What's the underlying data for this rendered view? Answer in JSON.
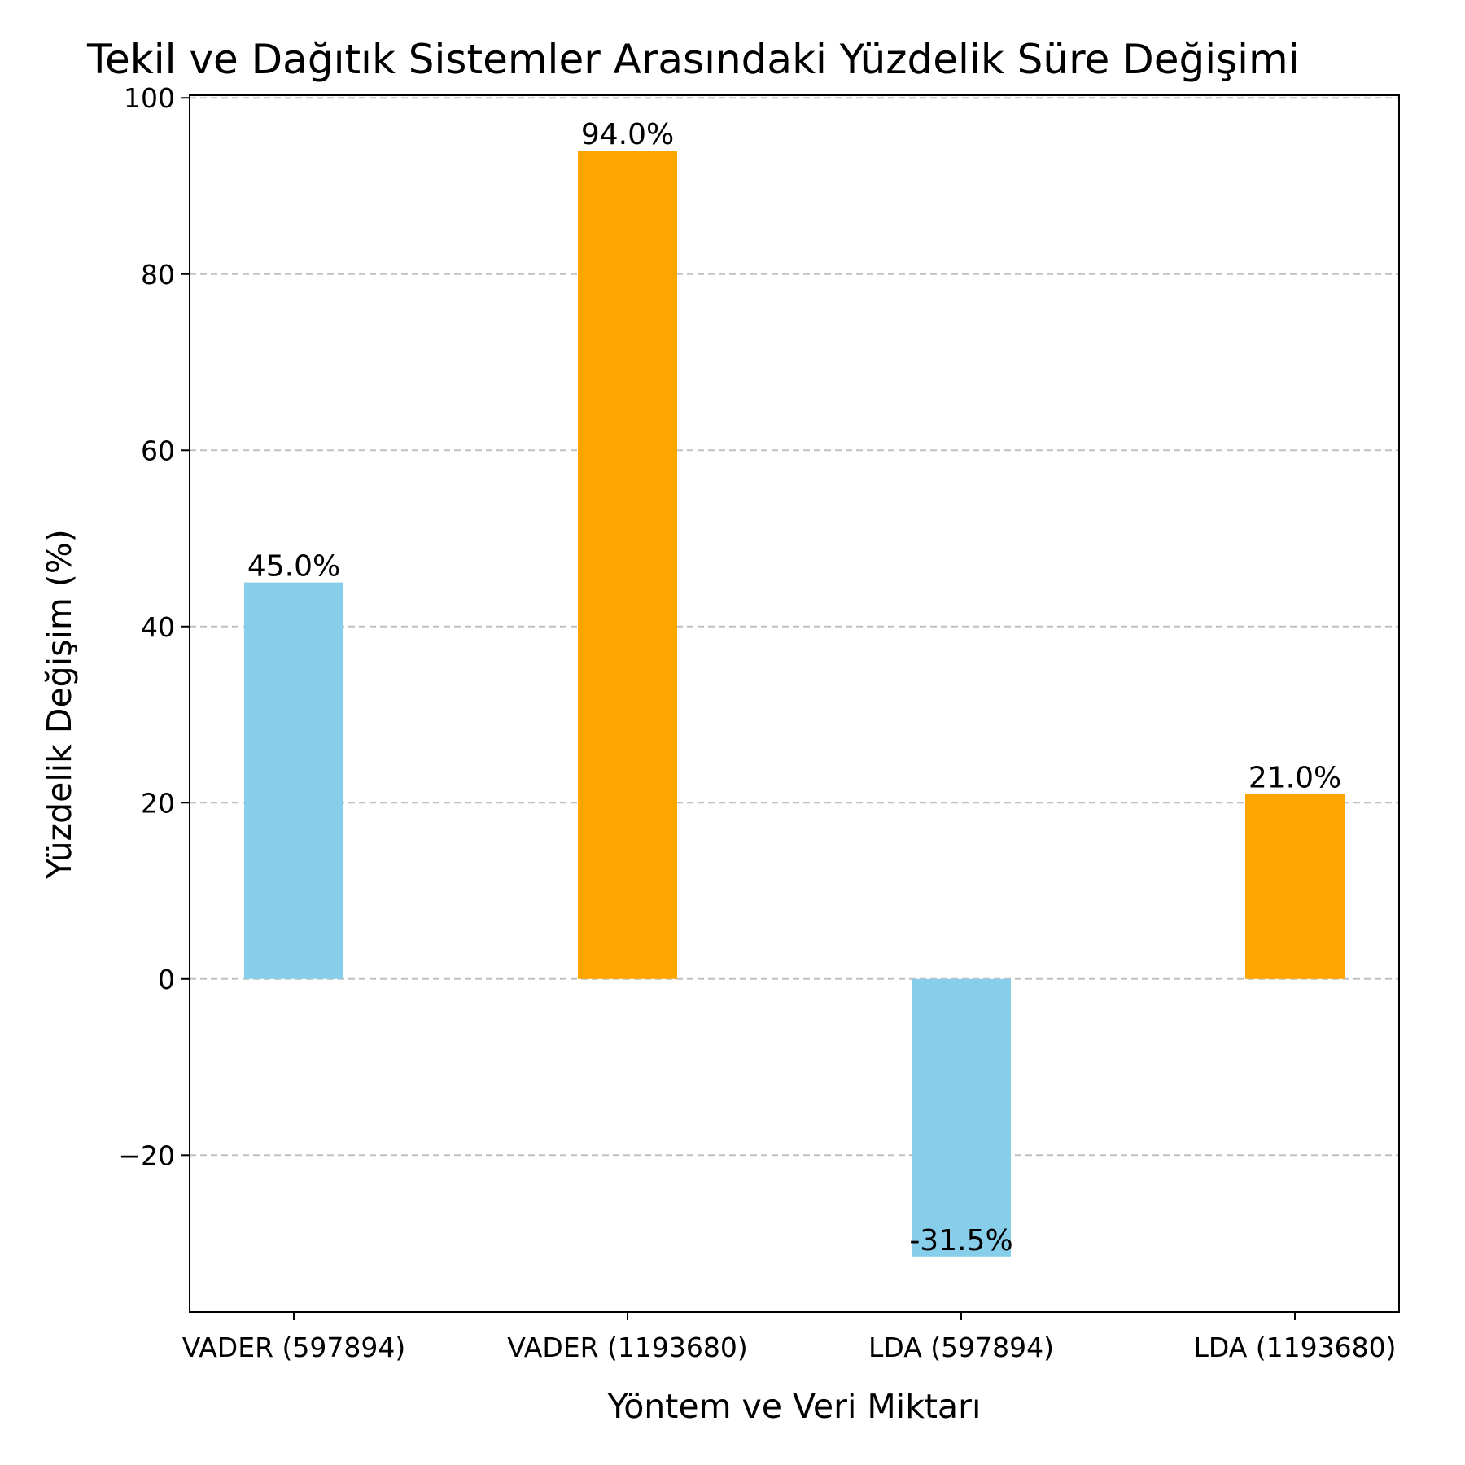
{
  "chart_data": {
    "type": "bar",
    "title": "Tekil ve Dağıtık Sistemler Arasındaki Yüzdelik Süre Değişimi",
    "xlabel": "Yöntem ve Veri Miktarı",
    "ylabel": "Yüzdelik Değişim (%)",
    "categories": [
      "VADER (597894)",
      "VADER (1193680)",
      "LDA (597894)",
      "LDA (1193680)"
    ],
    "values": [
      45.0,
      94.0,
      -31.5,
      21.0
    ],
    "value_labels": [
      "45.0%",
      "94.0%",
      "-31.5%",
      "21.0%"
    ],
    "bar_colors": [
      "#87CEEB",
      "#FFA500",
      "#87CEEB",
      "#FFA500"
    ],
    "ylim": [
      -37.8,
      100.3
    ],
    "yticks": [
      -20,
      0,
      20,
      40,
      60,
      80,
      100
    ],
    "ytick_labels": [
      "−20",
      "0",
      "20",
      "40",
      "60",
      "80",
      "100"
    ],
    "grid": "y-dashed"
  }
}
